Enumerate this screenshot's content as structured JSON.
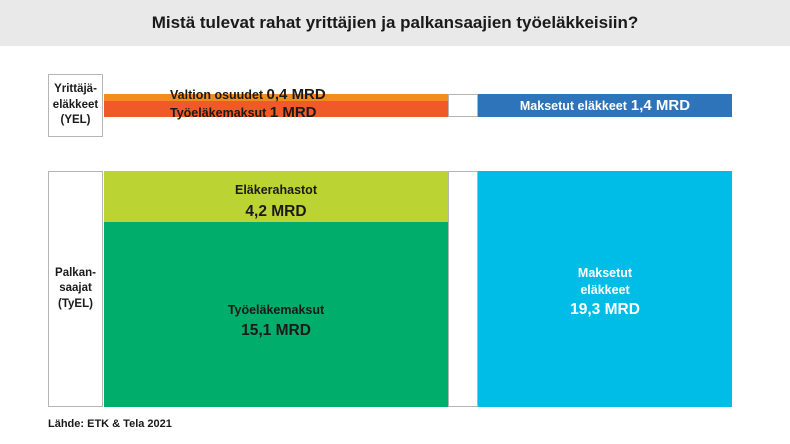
{
  "title": "Mistä tulevat rahat yrittäjien ja palkansaajien työeläkkeisiin?",
  "source": "Lähde: ETK & Tela 2021",
  "chart_data": {
    "type": "bar",
    "unit": "MRD",
    "groups": [
      {
        "label": "Yrittäjä-\neläkkeet\n(YEL)",
        "income": [
          {
            "name": "Valtion osuudet",
            "value": 0.4,
            "value_label": "0,4 MRD",
            "color": "#f28c1e"
          },
          {
            "name": "Työeläkemaksut",
            "value": 1.0,
            "value_label": "1 MRD",
            "color": "#ef5a28"
          }
        ],
        "paid": {
          "name": "Maksetut eläkkeet",
          "value": 1.4,
          "value_label": "1,4 MRD",
          "color": "#2d74bb"
        }
      },
      {
        "label": "Palkan-\nsaajat\n(TyEL)",
        "income": [
          {
            "name": "Eläkerahastot",
            "value": 4.2,
            "value_label": "4,2 MRD",
            "color": "#bcd334"
          },
          {
            "name": "Työeläkemaksut",
            "value": 15.1,
            "value_label": "15,1 MRD",
            "color": "#00ad6a"
          }
        ],
        "paid": {
          "name": "Maksetut\neläkkeet",
          "value": 19.3,
          "value_label": "19,3 MRD",
          "color": "#00bde8"
        }
      }
    ]
  }
}
